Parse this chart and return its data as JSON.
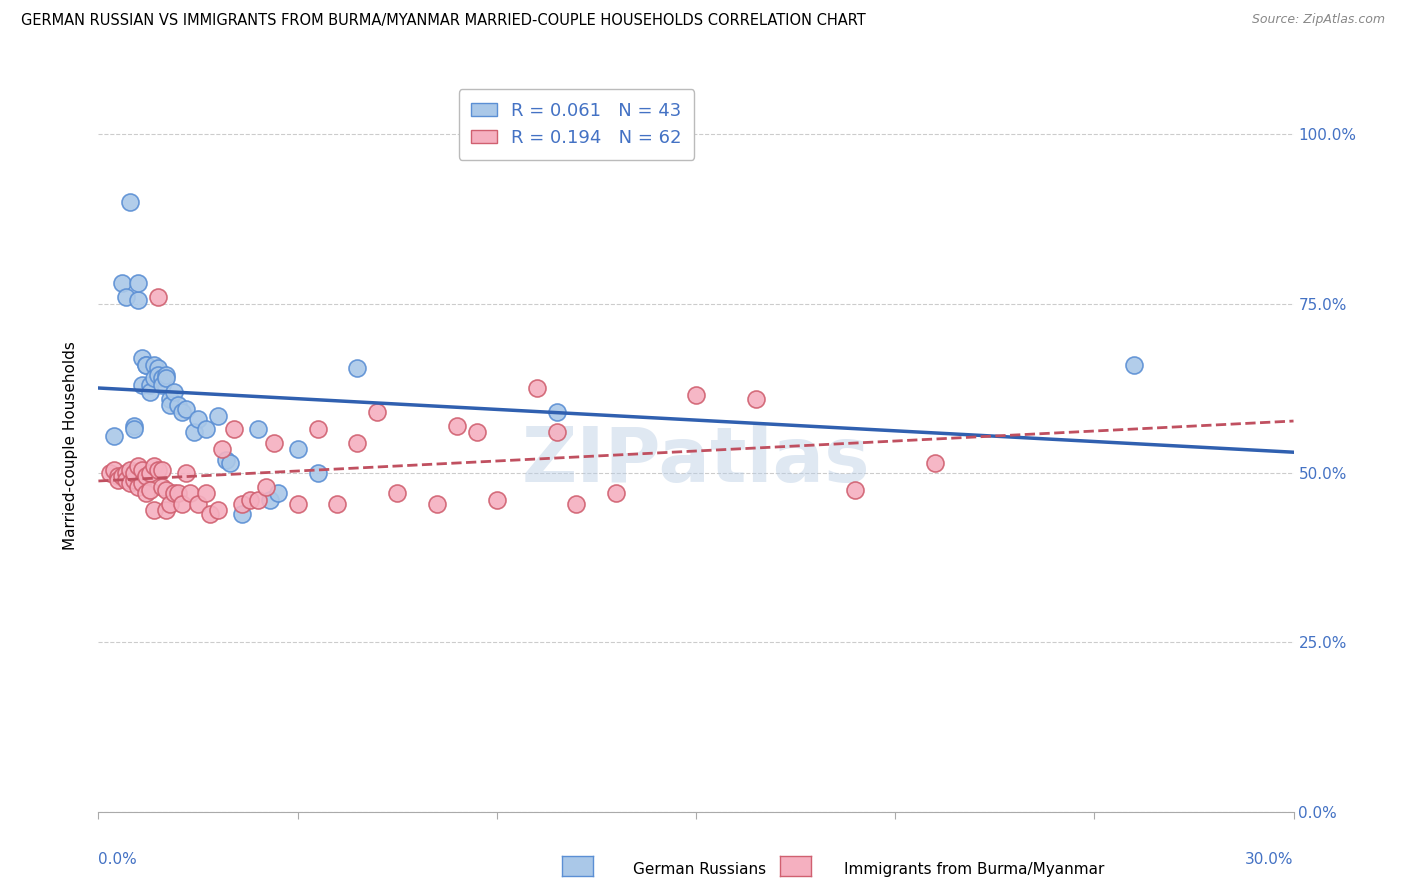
{
  "title": "GERMAN RUSSIAN VS IMMIGRANTS FROM BURMA/MYANMAR MARRIED-COUPLE HOUSEHOLDS CORRELATION CHART",
  "source": "Source: ZipAtlas.com",
  "ylabel": "Married-couple Households",
  "yticks_labels": [
    "0.0%",
    "25.0%",
    "50.0%",
    "75.0%",
    "100.0%"
  ],
  "ytick_vals": [
    0.0,
    0.25,
    0.5,
    0.75,
    1.0
  ],
  "xlim": [
    0.0,
    0.3
  ],
  "ylim": [
    0.0,
    1.08
  ],
  "legend_blue_text": "R = 0.061   N = 43",
  "legend_pink_text": "R = 0.194   N = 62",
  "legend_label_blue": "German Russians",
  "legend_label_pink": "Immigrants from Burma/Myanmar",
  "blue_color": "#aac8e8",
  "pink_color": "#f5b0c0",
  "blue_edge_color": "#5b8fd4",
  "pink_edge_color": "#d06070",
  "blue_line_color": "#3060b0",
  "pink_line_color": "#c05060",
  "watermark": "ZIPatlas",
  "blue_scatter_x": [
    0.004,
    0.006,
    0.007,
    0.008,
    0.009,
    0.009,
    0.01,
    0.01,
    0.011,
    0.011,
    0.012,
    0.012,
    0.013,
    0.013,
    0.014,
    0.014,
    0.015,
    0.015,
    0.016,
    0.016,
    0.017,
    0.017,
    0.018,
    0.018,
    0.019,
    0.02,
    0.021,
    0.022,
    0.024,
    0.025,
    0.027,
    0.03,
    0.032,
    0.033,
    0.036,
    0.04,
    0.043,
    0.045,
    0.05,
    0.055,
    0.065,
    0.115,
    0.26
  ],
  "blue_scatter_y": [
    0.555,
    0.78,
    0.76,
    0.9,
    0.57,
    0.565,
    0.755,
    0.78,
    0.63,
    0.67,
    0.66,
    0.66,
    0.63,
    0.62,
    0.66,
    0.64,
    0.655,
    0.645,
    0.64,
    0.63,
    0.645,
    0.64,
    0.61,
    0.6,
    0.62,
    0.6,
    0.59,
    0.595,
    0.56,
    0.58,
    0.565,
    0.585,
    0.52,
    0.515,
    0.44,
    0.565,
    0.46,
    0.47,
    0.535,
    0.5,
    0.655,
    0.59,
    0.66
  ],
  "pink_scatter_x": [
    0.003,
    0.004,
    0.005,
    0.005,
    0.006,
    0.007,
    0.007,
    0.008,
    0.008,
    0.009,
    0.009,
    0.01,
    0.01,
    0.011,
    0.011,
    0.012,
    0.012,
    0.013,
    0.013,
    0.014,
    0.014,
    0.015,
    0.015,
    0.016,
    0.016,
    0.017,
    0.017,
    0.018,
    0.019,
    0.02,
    0.021,
    0.022,
    0.023,
    0.025,
    0.027,
    0.028,
    0.03,
    0.031,
    0.034,
    0.036,
    0.038,
    0.04,
    0.042,
    0.044,
    0.05,
    0.055,
    0.06,
    0.065,
    0.07,
    0.075,
    0.085,
    0.09,
    0.095,
    0.1,
    0.11,
    0.115,
    0.12,
    0.13,
    0.15,
    0.165,
    0.19,
    0.21
  ],
  "pink_scatter_y": [
    0.5,
    0.505,
    0.495,
    0.49,
    0.495,
    0.5,
    0.49,
    0.505,
    0.485,
    0.49,
    0.5,
    0.51,
    0.48,
    0.505,
    0.485,
    0.495,
    0.47,
    0.5,
    0.475,
    0.51,
    0.445,
    0.505,
    0.76,
    0.505,
    0.48,
    0.475,
    0.445,
    0.455,
    0.47,
    0.47,
    0.455,
    0.5,
    0.47,
    0.455,
    0.47,
    0.44,
    0.445,
    0.535,
    0.565,
    0.455,
    0.46,
    0.46,
    0.48,
    0.545,
    0.455,
    0.565,
    0.455,
    0.545,
    0.59,
    0.47,
    0.455,
    0.57,
    0.56,
    0.46,
    0.625,
    0.56,
    0.455,
    0.47,
    0.615,
    0.61,
    0.475,
    0.515
  ]
}
